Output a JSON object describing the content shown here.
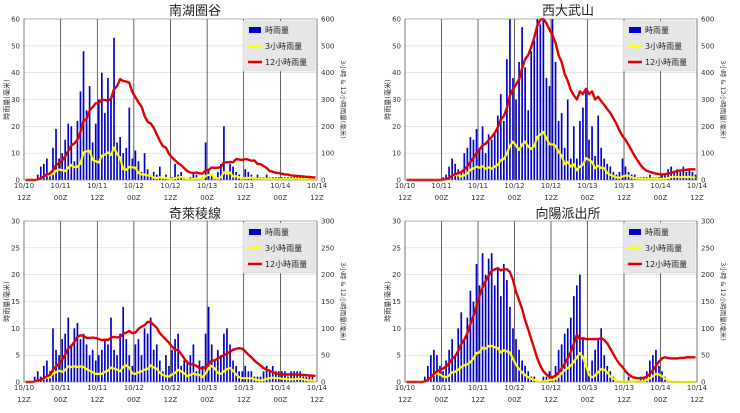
{
  "colors": {
    "hourly": "#0000cc",
    "three_hour": "#ffff00",
    "twelve_hour": "#e00000",
    "legend_bg": "#e6e6e6",
    "grid": "#000000"
  },
  "chart_data": [
    {
      "type": "bar+line",
      "title": "南湖圈谷",
      "ylabel_left": "時雨量(毫米)",
      "ylabel_right": "3小時 & 12小時雨量(毫米)",
      "ylim_left": [
        0,
        60
      ],
      "yticks_left": [
        0,
        10,
        20,
        30,
        40,
        50,
        60
      ],
      "ylim_right": [
        0,
        600
      ],
      "yticks_right": [
        0,
        100,
        200,
        300,
        400,
        500,
        600
      ],
      "xlim_hours": [
        0,
        96
      ],
      "xticks": [
        {
          "hour": 0,
          "top": "10/10",
          "bottom": "12Z"
        },
        {
          "hour": 12,
          "top": "10/11",
          "bottom": "00Z"
        },
        {
          "hour": 24,
          "top": "10/11",
          "bottom": "12Z"
        },
        {
          "hour": 36,
          "top": "10/12",
          "bottom": "00Z"
        },
        {
          "hour": 48,
          "top": "10/12",
          "bottom": "12Z"
        },
        {
          "hour": 60,
          "top": "10/13",
          "bottom": "00Z"
        },
        {
          "hour": 72,
          "top": "10/13",
          "bottom": "12Z"
        },
        {
          "hour": 84,
          "top": "10/14",
          "bottom": "00Z"
        },
        {
          "hour": 96,
          "top": "10/14",
          "bottom": "12Z"
        }
      ],
      "legend": [
        "時雨量",
        "3小時雨量",
        "12小時雨量"
      ],
      "hourly": [
        0,
        0,
        0,
        0,
        2,
        5,
        6,
        8,
        3,
        12,
        19,
        8,
        10,
        15,
        21,
        20,
        7,
        22,
        33,
        48,
        26,
        35,
        14,
        21,
        30,
        40,
        25,
        38,
        30,
        53,
        14,
        16,
        10,
        12,
        27,
        8,
        11,
        7,
        3,
        10,
        4,
        2,
        3,
        2,
        5,
        1,
        2,
        0,
        1,
        6,
        2,
        3,
        1,
        0,
        1,
        3,
        2,
        0,
        1,
        14,
        4,
        2,
        1,
        3,
        6,
        20,
        2,
        6,
        5,
        3,
        2,
        1,
        4,
        3,
        2,
        1,
        2,
        1,
        1,
        2,
        1,
        1,
        1,
        1,
        1,
        1,
        1,
        1,
        1,
        1,
        1,
        1,
        0,
        1,
        0,
        0
      ],
      "three_hour": [
        0,
        0,
        0,
        0,
        2,
        7,
        13,
        19,
        17,
        23,
        34,
        39,
        37,
        33,
        46,
        56,
        48,
        49,
        62,
        103,
        107,
        109,
        75,
        70,
        65,
        91,
        95,
        103,
        93,
        121,
        97,
        83,
        40,
        38,
        49,
        47,
        46,
        26,
        21,
        20,
        17,
        16,
        9,
        7,
        10,
        8,
        8,
        3,
        3,
        7,
        9,
        11,
        6,
        4,
        2,
        4,
        6,
        5,
        3,
        15,
        19,
        20,
        7,
        6,
        10,
        29,
        28,
        28,
        13,
        14,
        10,
        6,
        7,
        8,
        9,
        6,
        5,
        4,
        4,
        4,
        4,
        3,
        3,
        3,
        3,
        3,
        3,
        3,
        3,
        3,
        3,
        3,
        2,
        2,
        1,
        1
      ],
      "twelve_hour": [
        0,
        0,
        0,
        0,
        2,
        7,
        13,
        21,
        24,
        36,
        55,
        63,
        73,
        88,
        109,
        129,
        136,
        150,
        179,
        219,
        228,
        259,
        272,
        286,
        287,
        300,
        298,
        295,
        303,
        338,
        350,
        376,
        369,
        367,
        362,
        328,
        309,
        289,
        274,
        239,
        217,
        211,
        195,
        170,
        146,
        126,
        121,
        97,
        84,
        73,
        63,
        55,
        44,
        33,
        28,
        26,
        28,
        25,
        24,
        36,
        38,
        47,
        45,
        46,
        48,
        66,
        66,
        67,
        66,
        78,
        76,
        75,
        78,
        76,
        72,
        73,
        60,
        59,
        52,
        45,
        33,
        31,
        27,
        26,
        23,
        21,
        20,
        17,
        16,
        15,
        14,
        13,
        12,
        11,
        10,
        9
      ]
    },
    {
      "type": "bar+line",
      "title": "西大武山",
      "ylabel_left": "時雨量(毫米)",
      "ylabel_right": "3小時 & 12小時雨量(毫米)",
      "ylim_left": [
        0,
        60
      ],
      "yticks_left": [
        0,
        10,
        20,
        30,
        40,
        50,
        60
      ],
      "ylim_right": [
        0,
        600
      ],
      "yticks_right": [
        0,
        100,
        200,
        300,
        400,
        500,
        600
      ],
      "xlim_hours": [
        0,
        96
      ],
      "xticks": [
        {
          "hour": 0,
          "top": "10/10",
          "bottom": "12Z"
        },
        {
          "hour": 12,
          "top": "10/11",
          "bottom": "00Z"
        },
        {
          "hour": 24,
          "top": "10/11",
          "bottom": "12Z"
        },
        {
          "hour": 36,
          "top": "10/12",
          "bottom": "00Z"
        },
        {
          "hour": 48,
          "top": "10/12",
          "bottom": "12Z"
        },
        {
          "hour": 60,
          "top": "10/13",
          "bottom": "00Z"
        },
        {
          "hour": 72,
          "top": "10/13",
          "bottom": "12Z"
        },
        {
          "hour": 84,
          "top": "10/14",
          "bottom": "00Z"
        },
        {
          "hour": 96,
          "top": "10/14",
          "bottom": "12Z"
        }
      ],
      "legend": [
        "時雨量",
        "3小時雨量",
        "12小時雨量"
      ],
      "hourly": [
        0,
        0,
        0,
        0,
        0,
        0,
        0,
        0,
        0,
        0,
        0,
        0,
        1,
        2,
        5,
        8,
        6,
        4,
        3,
        10,
        12,
        16,
        15,
        19,
        12,
        20,
        10,
        17,
        15,
        18,
        24,
        32,
        22,
        45,
        60,
        38,
        30,
        44,
        57,
        42,
        26,
        48,
        52,
        60,
        58,
        60,
        38,
        35,
        60,
        44,
        22,
        25,
        12,
        30,
        8,
        20,
        8,
        22,
        27,
        33,
        15,
        20,
        9,
        24,
        12,
        8,
        6,
        5,
        3,
        2,
        3,
        8,
        5,
        3,
        2,
        2,
        1,
        1,
        1,
        1,
        2,
        1,
        1,
        1,
        2,
        2,
        4,
        5,
        3,
        4,
        3,
        5,
        3,
        4,
        3,
        2
      ],
      "three_hour": [
        0,
        0,
        0,
        0,
        0,
        0,
        0,
        0,
        0,
        0,
        0,
        0,
        1,
        3,
        8,
        15,
        19,
        18,
        13,
        17,
        25,
        38,
        43,
        50,
        46,
        51,
        42,
        47,
        42,
        50,
        57,
        74,
        78,
        99,
        127,
        143,
        128,
        112,
        131,
        143,
        125,
        116,
        126,
        160,
        170,
        178,
        156,
        133,
        133,
        127,
        104,
        91,
        59,
        67,
        50,
        58,
        36,
        50,
        57,
        82,
        75,
        68,
        44,
        53,
        45,
        44,
        26,
        19,
        14,
        10,
        8,
        13,
        16,
        16,
        10,
        7,
        5,
        4,
        3,
        3,
        4,
        4,
        4,
        3,
        4,
        5,
        7,
        11,
        12,
        12,
        10,
        12,
        11,
        12,
        10,
        9
      ],
      "twelve_hour": [
        0,
        0,
        0,
        0,
        0,
        0,
        0,
        0,
        0,
        0,
        0,
        0,
        1,
        3,
        8,
        16,
        22,
        26,
        29,
        39,
        51,
        67,
        82,
        101,
        112,
        130,
        135,
        148,
        160,
        175,
        196,
        225,
        239,
        269,
        314,
        339,
        356,
        375,
        416,
        450,
        466,
        495,
        532,
        575,
        598,
        600,
        585,
        560,
        540,
        510,
        465,
        440,
        395,
        370,
        335,
        316,
        300,
        330,
        320,
        340,
        320,
        330,
        300,
        310,
        294,
        280,
        264,
        250,
        230,
        210,
        185,
        164,
        150,
        130,
        110,
        90,
        72,
        55,
        42,
        34,
        30,
        27,
        24,
        22,
        21,
        22,
        24,
        27,
        30,
        33,
        35,
        37,
        38,
        40,
        40,
        40
      ]
    },
    {
      "type": "bar+line",
      "title": "奇萊稜線",
      "ylabel_left": "時雨量(毫米)",
      "ylabel_right": "3小時 & 12小時雨量(毫米)",
      "ylim_left": [
        0,
        30
      ],
      "yticks_left": [
        0,
        5,
        10,
        15,
        20,
        25,
        30
      ],
      "ylim_right": [
        0,
        300
      ],
      "yticks_right": [
        0,
        50,
        100,
        150,
        200,
        250,
        300
      ],
      "xlim_hours": [
        0,
        96
      ],
      "xticks": [
        {
          "hour": 0,
          "top": "10/10",
          "bottom": "12Z"
        },
        {
          "hour": 12,
          "top": "10/11",
          "bottom": "00Z"
        },
        {
          "hour": 24,
          "top": "10/11",
          "bottom": "12Z"
        },
        {
          "hour": 36,
          "top": "10/12",
          "bottom": "00Z"
        },
        {
          "hour": 48,
          "top": "10/12",
          "bottom": "12Z"
        },
        {
          "hour": 60,
          "top": "10/13",
          "bottom": "00Z"
        },
        {
          "hour": 72,
          "top": "10/13",
          "bottom": "12Z"
        },
        {
          "hour": 84,
          "top": "10/14",
          "bottom": "00Z"
        },
        {
          "hour": 96,
          "top": "10/14",
          "bottom": "12Z"
        }
      ],
      "legend": [
        "時雨量",
        "3小時雨量",
        "12小時雨量"
      ],
      "hourly": [
        0,
        0,
        0,
        1,
        2,
        1,
        3,
        4,
        2,
        10,
        6,
        5,
        8,
        9,
        12,
        7,
        10,
        11,
        8,
        9,
        7,
        5,
        6,
        4,
        5,
        6,
        8,
        7,
        12,
        6,
        5,
        9,
        14,
        8,
        5,
        3,
        7,
        8,
        5,
        10,
        9,
        12,
        6,
        7,
        4,
        2,
        5,
        3,
        6,
        8,
        9,
        3,
        4,
        4,
        5,
        7,
        2,
        4,
        3,
        9,
        14,
        7,
        4,
        6,
        5,
        9,
        10,
        7,
        4,
        3,
        2,
        2,
        3,
        2,
        2,
        1,
        1,
        1,
        2,
        3,
        2,
        3,
        2,
        2,
        2,
        2,
        1,
        2,
        2,
        2,
        2,
        1,
        1,
        1,
        1,
        0
      ],
      "three_hour": [
        0,
        0,
        0,
        1,
        3,
        4,
        6,
        8,
        9,
        16,
        18,
        21,
        19,
        22,
        29,
        28,
        29,
        28,
        29,
        28,
        24,
        21,
        18,
        15,
        15,
        15,
        19,
        21,
        27,
        25,
        23,
        20,
        28,
        31,
        27,
        16,
        15,
        18,
        20,
        23,
        24,
        31,
        27,
        25,
        17,
        13,
        11,
        10,
        14,
        17,
        23,
        20,
        16,
        11,
        13,
        16,
        14,
        13,
        9,
        16,
        26,
        30,
        25,
        17,
        15,
        20,
        24,
        26,
        21,
        14,
        9,
        7,
        7,
        7,
        7,
        5,
        4,
        3,
        4,
        6,
        7,
        8,
        7,
        7,
        6,
        6,
        5,
        5,
        5,
        6,
        6,
        5,
        4,
        3,
        3,
        2
      ],
      "twelve_hour": [
        0,
        0,
        0,
        1,
        3,
        4,
        7,
        11,
        13,
        23,
        29,
        34,
        42,
        51,
        63,
        67,
        75,
        84,
        87,
        86,
        82,
        82,
        83,
        82,
        80,
        78,
        79,
        78,
        83,
        84,
        83,
        84,
        90,
        92,
        95,
        91,
        92,
        99,
        103,
        106,
        112,
        112,
        106,
        101,
        91,
        85,
        79,
        73,
        66,
        60,
        60,
        52,
        44,
        36,
        33,
        33,
        30,
        26,
        25,
        28,
        33,
        40,
        40,
        44,
        47,
        50,
        53,
        56,
        60,
        62,
        63,
        62,
        57,
        51,
        46,
        40,
        35,
        31,
        26,
        23,
        21,
        18,
        16,
        15,
        14,
        14,
        14,
        14,
        14,
        14,
        13,
        13,
        13,
        12,
        12,
        11
      ]
    },
    {
      "type": "bar+line",
      "title": "向陽派出所",
      "ylabel_left": "時雨量(毫米)",
      "ylabel_right": "3小時 & 12小時雨量(毫米)",
      "ylim_left": [
        0,
        30
      ],
      "yticks_left": [
        0,
        5,
        10,
        15,
        20,
        25,
        30
      ],
      "ylim_right": [
        0,
        300
      ],
      "yticks_right": [
        0,
        50,
        100,
        150,
        200,
        250,
        300
      ],
      "xlim_hours": [
        0,
        96
      ],
      "xticks": [
        {
          "hour": 0,
          "top": "10/10",
          "bottom": "12Z"
        },
        {
          "hour": 12,
          "top": "10/11",
          "bottom": "00Z"
        },
        {
          "hour": 24,
          "top": "10/11",
          "bottom": "12Z"
        },
        {
          "hour": 36,
          "top": "10/12",
          "bottom": "00Z"
        },
        {
          "hour": 48,
          "top": "10/12",
          "bottom": "12Z"
        },
        {
          "hour": 60,
          "top": "10/13",
          "bottom": "00Z"
        },
        {
          "hour": 72,
          "top": "10/13",
          "bottom": "12Z"
        },
        {
          "hour": 84,
          "top": "10/14",
          "bottom": "00Z"
        },
        {
          "hour": 96,
          "top": "10/14",
          "bottom": "12Z"
        }
      ],
      "legend": [
        "時雨量",
        "3小時雨量",
        "12小時雨量"
      ],
      "hourly": [
        0,
        0,
        0,
        0,
        0,
        0,
        1,
        3,
        5,
        6,
        5,
        3,
        2,
        4,
        6,
        8,
        5,
        10,
        13,
        8,
        12,
        17,
        15,
        22,
        18,
        24,
        20,
        23,
        24,
        18,
        21,
        16,
        22,
        19,
        14,
        10,
        8,
        6,
        4,
        3,
        2,
        1,
        1,
        0,
        0,
        1,
        1,
        2,
        1,
        3,
        6,
        7,
        9,
        10,
        12,
        16,
        18,
        20,
        8,
        3,
        2,
        4,
        6,
        8,
        10,
        5,
        3,
        2,
        1,
        0,
        0,
        0,
        0,
        1,
        0,
        0,
        0,
        1,
        1,
        2,
        4,
        5,
        6,
        3,
        2,
        1,
        0,
        0,
        0,
        0,
        0,
        0,
        0,
        0,
        0,
        0
      ],
      "three_hour": [
        0,
        0,
        0,
        0,
        0,
        0,
        1,
        4,
        9,
        14,
        16,
        14,
        10,
        9,
        12,
        18,
        19,
        23,
        28,
        31,
        33,
        37,
        44,
        54,
        55,
        64,
        62,
        67,
        67,
        65,
        63,
        55,
        59,
        57,
        55,
        43,
        32,
        24,
        18,
        13,
        9,
        6,
        4,
        2,
        1,
        1,
        2,
        4,
        4,
        6,
        10,
        16,
        22,
        26,
        31,
        38,
        46,
        54,
        46,
        31,
        13,
        9,
        12,
        18,
        24,
        23,
        18,
        10,
        6,
        3,
        1,
        0,
        0,
        1,
        1,
        1,
        0,
        1,
        2,
        4,
        7,
        11,
        15,
        14,
        11,
        6,
        3,
        1,
        0,
        0,
        0,
        0,
        0,
        0,
        0,
        0
      ],
      "twelve_hour": [
        0,
        0,
        0,
        0,
        0,
        0,
        1,
        4,
        9,
        15,
        20,
        23,
        25,
        29,
        35,
        43,
        48,
        58,
        71,
        79,
        91,
        108,
        123,
        142,
        160,
        176,
        188,
        198,
        207,
        210,
        212,
        208,
        210,
        210,
        205,
        190,
        168,
        152,
        136,
        115,
        98,
        80,
        62,
        44,
        30,
        20,
        14,
        10,
        9,
        12,
        18,
        25,
        34,
        44,
        56,
        71,
        88,
        80,
        82,
        80,
        80,
        80,
        80,
        80,
        82,
        78,
        72,
        62,
        52,
        42,
        34,
        28,
        20,
        14,
        10,
        8,
        7,
        7,
        8,
        10,
        15,
        22,
        30,
        38,
        44,
        46,
        45,
        44,
        44,
        44,
        45,
        45,
        46,
        46,
        46,
        46
      ]
    }
  ]
}
